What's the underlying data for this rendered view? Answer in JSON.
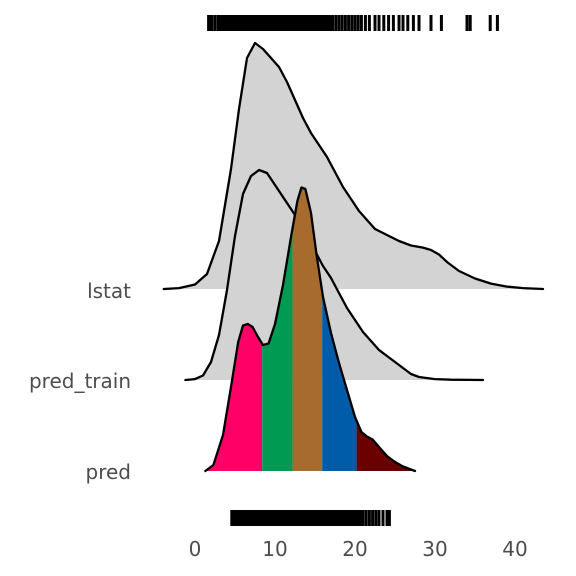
{
  "chart_data": {
    "type": "ridgeline",
    "title": "",
    "xlabel": "",
    "ylabel": "",
    "xlim": [
      -4,
      44
    ],
    "x_ticks": [
      0,
      10,
      20,
      30,
      40
    ],
    "x_tick_labels": [
      "0",
      "10",
      "20",
      "30",
      "40"
    ],
    "categories": [
      "lstat",
      "pred_train",
      "pred"
    ],
    "grid": false,
    "legend": "none",
    "fill_color": "#d3d3d3",
    "outline_color": "#000000",
    "series": [
      {
        "name": "lstat",
        "fill": "#d3d3d3",
        "curve": [
          [
            -3.9,
            0
          ],
          [
            -2,
            0.3
          ],
          [
            0,
            1.5
          ],
          [
            1.5,
            5
          ],
          [
            3,
            16
          ],
          [
            4.5,
            40
          ],
          [
            5.5,
            60
          ],
          [
            6.5,
            77
          ],
          [
            7.5,
            82
          ],
          [
            8.5,
            80
          ],
          [
            9.5,
            77
          ],
          [
            10.5,
            74
          ],
          [
            11.5,
            69
          ],
          [
            12.5,
            63
          ],
          [
            13.5,
            57
          ],
          [
            14.5,
            52
          ],
          [
            15.5,
            48
          ],
          [
            16.5,
            44
          ],
          [
            17.5,
            39
          ],
          [
            18.5,
            34
          ],
          [
            19.5,
            30
          ],
          [
            20.5,
            26
          ],
          [
            21.5,
            23
          ],
          [
            22.5,
            20
          ],
          [
            24,
            18
          ],
          [
            25.5,
            16
          ],
          [
            27,
            14.5
          ],
          [
            28.5,
            13.8
          ],
          [
            29.5,
            13
          ],
          [
            30.5,
            11.5
          ],
          [
            31.5,
            9
          ],
          [
            33,
            6
          ],
          [
            35,
            3.5
          ],
          [
            37,
            1.8
          ],
          [
            39,
            0.8
          ],
          [
            41,
            0.3
          ],
          [
            43.5,
            0
          ]
        ]
      },
      {
        "name": "pred_train",
        "fill": "#d3d3d3",
        "curve": [
          [
            -1.2,
            0
          ],
          [
            0,
            0.3
          ],
          [
            1,
            1.5
          ],
          [
            2,
            6
          ],
          [
            3,
            15
          ],
          [
            4,
            30
          ],
          [
            5,
            48
          ],
          [
            6,
            62
          ],
          [
            7,
            68
          ],
          [
            8,
            70
          ],
          [
            9,
            69
          ],
          [
            10,
            65
          ],
          [
            11,
            61
          ],
          [
            12,
            57
          ],
          [
            13,
            53
          ],
          [
            14,
            48
          ],
          [
            15,
            43
          ],
          [
            16,
            38
          ],
          [
            17,
            34
          ],
          [
            18,
            29
          ],
          [
            19,
            24
          ],
          [
            20,
            20
          ],
          [
            21,
            16
          ],
          [
            22,
            13
          ],
          [
            23,
            10
          ],
          [
            24,
            8
          ],
          [
            25,
            6
          ],
          [
            26,
            4
          ],
          [
            27,
            2
          ],
          [
            28,
            1
          ],
          [
            30,
            0.3
          ],
          [
            32,
            0.1
          ],
          [
            36,
            0
          ]
        ]
      },
      {
        "name": "pred",
        "fill": "#d3d3d3",
        "quantile_fills": [
          "#ff0066",
          "#009a53",
          "#a76c2d",
          "#005ba8",
          "#6a0000"
        ],
        "quantile_breaks": [
          8.4,
          12.2,
          15.9,
          20.2
        ],
        "curve": [
          [
            1.3,
            0
          ],
          [
            2.3,
            2
          ],
          [
            3.5,
            12
          ],
          [
            4.5,
            28
          ],
          [
            5.4,
            43
          ],
          [
            6,
            48.5
          ],
          [
            6.6,
            49
          ],
          [
            7.2,
            48
          ],
          [
            7.8,
            45
          ],
          [
            8.5,
            42
          ],
          [
            9.2,
            42.5
          ],
          [
            10,
            49
          ],
          [
            11,
            62
          ],
          [
            12,
            78
          ],
          [
            12.8,
            90
          ],
          [
            13.3,
            94.5
          ],
          [
            13.8,
            94
          ],
          [
            14.5,
            86
          ],
          [
            15.2,
            72
          ],
          [
            16,
            58
          ],
          [
            17,
            46
          ],
          [
            18,
            36
          ],
          [
            19,
            27
          ],
          [
            20,
            18
          ],
          [
            20.8,
            13
          ],
          [
            21.5,
            11.5
          ],
          [
            22.2,
            10.5
          ],
          [
            23,
            8
          ],
          [
            24,
            5
          ],
          [
            25,
            3
          ],
          [
            26,
            1.5
          ],
          [
            27.5,
            0
          ]
        ]
      }
    ],
    "rug_top": [
      1.7,
      1.9,
      2.1,
      2.5,
      2.9,
      3.1,
      3.3,
      3.5,
      3.7,
      3.9,
      4.0,
      4.2,
      4.4,
      4.6,
      4.8,
      5.0,
      5.2,
      5.4,
      5.6,
      5.8,
      6.0,
      6.2,
      6.4,
      6.6,
      6.8,
      7.0,
      7.2,
      7.4,
      7.6,
      7.8,
      8.0,
      8.2,
      8.4,
      8.6,
      8.8,
      9.0,
      9.2,
      9.4,
      9.6,
      9.8,
      10.0,
      10.3,
      10.6,
      10.9,
      11.2,
      11.5,
      11.8,
      12.1,
      12.4,
      12.7,
      13.0,
      13.3,
      13.6,
      13.9,
      14.2,
      14.5,
      14.8,
      15.1,
      15.4,
      15.7,
      16.0,
      16.3,
      16.6,
      16.9,
      17.2,
      17.6,
      18.0,
      18.4,
      18.8,
      19.2,
      19.6,
      20.0,
      20.4,
      20.8,
      21.3,
      21.8,
      22.5,
      23.0,
      23.6,
      24.2,
      24.8,
      25.5,
      26.0,
      26.6,
      27.3,
      28.0,
      29.5,
      30.8,
      34.0,
      34.4,
      36.9,
      37.8
    ],
    "rug_bottom": [
      4.6,
      4.8,
      5.0,
      5.2,
      5.4,
      5.6,
      5.8,
      6.0,
      6.2,
      6.4,
      6.6,
      6.8,
      7.0,
      7.2,
      7.4,
      7.6,
      7.8,
      8.0,
      8.2,
      8.4,
      8.6,
      8.8,
      9.0,
      9.2,
      9.4,
      9.6,
      9.8,
      10.0,
      10.2,
      10.4,
      10.6,
      10.8,
      11.0,
      11.2,
      11.4,
      11.6,
      11.8,
      12.0,
      12.2,
      12.4,
      12.6,
      12.8,
      13.0,
      13.2,
      13.4,
      13.6,
      13.8,
      14.0,
      14.2,
      14.4,
      14.6,
      14.8,
      15.0,
      15.2,
      15.4,
      15.6,
      15.8,
      16.0,
      16.2,
      16.4,
      16.6,
      16.8,
      17.0,
      17.2,
      17.4,
      17.6,
      17.8,
      18.0,
      18.3,
      18.6,
      18.9,
      19.2,
      19.5,
      19.8,
      20.1,
      20.4,
      20.7,
      21.0,
      21.4,
      21.8,
      22.2,
      22.6,
      23.0,
      23.5,
      24.0,
      24.3
    ]
  }
}
